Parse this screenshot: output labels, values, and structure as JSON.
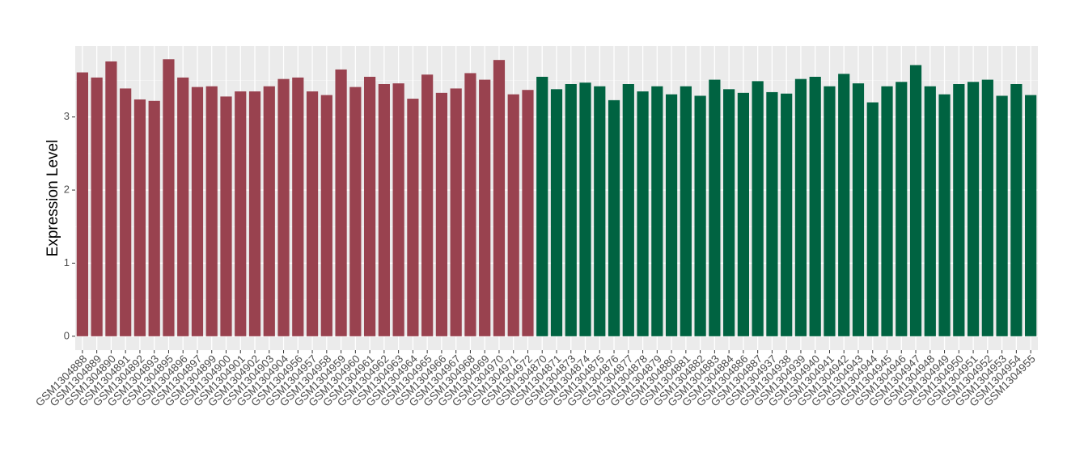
{
  "chart_data": {
    "type": "bar",
    "y_label": "Expression Level",
    "categories": [
      "GSM1304888",
      "GSM1304889",
      "GSM1304890",
      "GSM1304891",
      "GSM1304892",
      "GSM1304893",
      "GSM1304895",
      "GSM1304896",
      "GSM1304897",
      "GSM1304899",
      "GSM1304900",
      "GSM1304901",
      "GSM1304902",
      "GSM1304903",
      "GSM1304904",
      "GSM1304956",
      "GSM1304957",
      "GSM1304958",
      "GSM1304959",
      "GSM1304960",
      "GSM1304961",
      "GSM1304962",
      "GSM1304963",
      "GSM1304964",
      "GSM1304965",
      "GSM1304966",
      "GSM1304967",
      "GSM1304968",
      "GSM1304969",
      "GSM1304970",
      "GSM1304971",
      "GSM1304972",
      "GSM1304870",
      "GSM1304871",
      "GSM1304873",
      "GSM1304874",
      "GSM1304875",
      "GSM1304876",
      "GSM1304877",
      "GSM1304878",
      "GSM1304879",
      "GSM1304880",
      "GSM1304881",
      "GSM1304882",
      "GSM1304883",
      "GSM1304884",
      "GSM1304886",
      "GSM1304887",
      "GSM1304937",
      "GSM1304938",
      "GSM1304939",
      "GSM1304940",
      "GSM1304941",
      "GSM1304942",
      "GSM1304943",
      "GSM1304944",
      "GSM1304945",
      "GSM1304946",
      "GSM1304947",
      "GSM1304948",
      "GSM1304949",
      "GSM1304950",
      "GSM1304951",
      "GSM1304952",
      "GSM1304953",
      "GSM1304954",
      "GSM1304955"
    ],
    "values": [
      3.61,
      3.54,
      3.76,
      3.39,
      3.24,
      3.22,
      3.79,
      3.54,
      3.41,
      3.42,
      3.28,
      3.35,
      3.35,
      3.42,
      3.52,
      3.54,
      3.35,
      3.3,
      3.65,
      3.41,
      3.55,
      3.45,
      3.46,
      3.25,
      3.58,
      3.33,
      3.39,
      3.6,
      3.51,
      3.78,
      3.31,
      3.37,
      3.55,
      3.38,
      3.45,
      3.47,
      3.42,
      3.23,
      3.45,
      3.35,
      3.42,
      3.31,
      3.42,
      3.29,
      3.51,
      3.38,
      3.33,
      3.49,
      3.34,
      3.32,
      3.52,
      3.55,
      3.42,
      3.59,
      3.46,
      3.2,
      3.42,
      3.48,
      3.71,
      3.42,
      3.31,
      3.45,
      3.48,
      3.51,
      3.29,
      3.45,
      3.3
    ],
    "colors": [
      "#99424f",
      "#99424f",
      "#99424f",
      "#99424f",
      "#99424f",
      "#99424f",
      "#99424f",
      "#99424f",
      "#99424f",
      "#99424f",
      "#99424f",
      "#99424f",
      "#99424f",
      "#99424f",
      "#99424f",
      "#99424f",
      "#99424f",
      "#99424f",
      "#99424f",
      "#99424f",
      "#99424f",
      "#99424f",
      "#99424f",
      "#99424f",
      "#99424f",
      "#99424f",
      "#99424f",
      "#99424f",
      "#99424f",
      "#99424f",
      "#99424f",
      "#99424f",
      "#006341",
      "#006341",
      "#006341",
      "#006341",
      "#006341",
      "#006341",
      "#006341",
      "#006341",
      "#006341",
      "#006341",
      "#006341",
      "#006341",
      "#006341",
      "#006341",
      "#006341",
      "#006341",
      "#006341",
      "#006341",
      "#006341",
      "#006341",
      "#006341",
      "#006341",
      "#006341",
      "#006341",
      "#006341",
      "#006341",
      "#006341",
      "#006341",
      "#006341",
      "#006341",
      "#006341",
      "#006341",
      "#006341",
      "#006341",
      "#006341"
    ],
    "ylim": [
      -0.19,
      3.97
    ],
    "yticks": [
      0,
      1,
      2,
      3
    ],
    "minor_yticks": [
      0.5,
      1.5,
      2.5,
      3.5
    ],
    "grid": true
  }
}
